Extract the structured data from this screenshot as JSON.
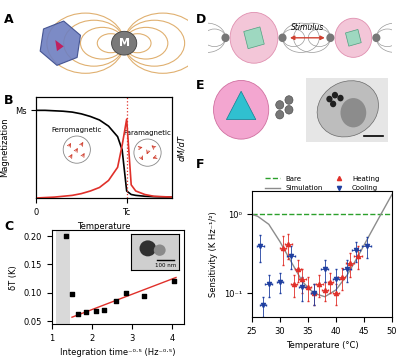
{
  "panel_labels": [
    "A",
    "B",
    "C",
    "D",
    "E",
    "F"
  ],
  "diagram_A": {
    "particle_label": "M"
  },
  "diagram_D": {
    "arrow_label": "Stimulus"
  },
  "chart_data": [
    {
      "type": "line",
      "x_label": "Temperature",
      "y_label": "Magnetization",
      "y2_label": "dM/dT",
      "x": [
        0,
        0.1,
        0.2,
        0.3,
        0.4,
        0.5,
        0.6,
        0.7,
        0.8,
        0.9,
        0.95,
        1.0,
        1.05,
        1.1,
        1.2,
        1.3,
        1.5
      ],
      "series": [
        {
          "color": "#000000",
          "line_style": "solid",
          "axis": "y",
          "values": [
            1.0,
            1.0,
            0.995,
            0.99,
            0.98,
            0.96,
            0.93,
            0.89,
            0.82,
            0.7,
            0.55,
            0.08,
            0.04,
            0.03,
            0.02,
            0.015,
            0.01
          ]
        },
        {
          "color": "#e0302a",
          "line_style": "solid",
          "axis": "y2",
          "values": [
            0,
            0.005,
            0.01,
            0.02,
            0.03,
            0.05,
            0.08,
            0.12,
            0.2,
            0.35,
            0.6,
            0.9,
            0.15,
            0.08,
            0.04,
            0.02,
            0.01
          ]
        }
      ],
      "xlim": [
        0,
        1.5
      ],
      "ylim": [
        0,
        1.15
      ],
      "y2lim": [
        0,
        1.15
      ],
      "xticks": [
        0,
        {
          "value": 1.0,
          "label": "Tc"
        }
      ],
      "yticks": [
        {
          "value": 1.0,
          "label": "Ms"
        }
      ],
      "y2ticks": [],
      "annotations": [
        "Ferromagnetic",
        "Paramagnetic"
      ]
    },
    {
      "type": "scatter",
      "x_label": "Integration time⁻⁰·⁵ (Hz⁻⁰·⁵)",
      "y_label": "δT (K)",
      "series": [
        {
          "type": "scatter",
          "color": "#000000",
          "marker": "square",
          "x": [
            1.35,
            1.5,
            1.65,
            1.85,
            2.1,
            2.3,
            2.6,
            2.85,
            3.3,
            4.05
          ],
          "values": [
            0.2,
            0.098,
            0.062,
            0.066,
            0.068,
            0.07,
            0.085,
            0.1,
            0.095,
            0.12
          ]
        },
        {
          "type": "line",
          "color": "#e0302a",
          "line_style": "solid",
          "x": [
            1.5,
            4.1
          ],
          "values": [
            0.057,
            0.127
          ]
        }
      ],
      "shaded_range": [
        1.1,
        1.45
      ],
      "xlim": [
        1,
        4.3
      ],
      "ylim": [
        0.045,
        0.21
      ],
      "xticks": [
        1,
        2,
        3,
        4
      ],
      "yticks": [
        0.05,
        {
          "value": 0.1,
          "label": "0.10"
        },
        0.15,
        {
          "value": 0.2,
          "label": "0.20"
        }
      ],
      "annotations": [
        "100 nm"
      ]
    },
    {
      "type": "scatter",
      "x_label": "Temperature (°C)",
      "y_label": "Sensitivity (K Hz⁻¹/²)",
      "log": "y",
      "legend": "upper center",
      "series": [
        {
          "name": "Bare",
          "type": "line",
          "color": "#2ca02c",
          "line_style": "dashed",
          "x": [
            25,
            50
          ],
          "values": [
            1,
            1
          ]
        },
        {
          "name": "Simulation",
          "type": "line",
          "color": "#8c8c8c",
          "line_style": "solid",
          "x": [
            25,
            26,
            28,
            30,
            32,
            34,
            36,
            38,
            40,
            42,
            44,
            46,
            48,
            50
          ],
          "values": [
            1.0,
            0.95,
            0.75,
            0.45,
            0.25,
            0.14,
            0.1,
            0.09,
            0.11,
            0.17,
            0.3,
            0.55,
            1.0,
            1.8
          ]
        },
        {
          "name": "Heating",
          "type": "scatter",
          "color": "#e0302a",
          "marker": "triangle_up",
          "x": [
            30.5,
            31.5,
            32.5,
            33.2,
            34,
            35,
            36,
            37,
            38,
            39,
            40,
            41,
            42.5,
            44
          ],
          "values": [
            0.38,
            0.42,
            0.13,
            0.2,
            0.15,
            0.12,
            0.1,
            0.13,
            0.11,
            0.14,
            0.1,
            0.16,
            0.24,
            0.3
          ],
          "x_error": [
            0.5,
            0.6,
            0.5,
            0.5,
            0.6,
            0.5,
            0.5,
            0.6,
            0.5,
            0.5,
            0.5,
            0.6,
            0.7,
            0.7
          ],
          "y_error": [
            0.15,
            0.15,
            0.04,
            0.06,
            0.05,
            0.04,
            0.03,
            0.04,
            0.03,
            0.04,
            0.03,
            0.05,
            0.08,
            0.1
          ]
        },
        {
          "name": "Cooling",
          "type": "scatter",
          "color": "#1f3fa0",
          "marker": "triangle_down",
          "x": [
            26.5,
            27,
            28,
            30,
            32,
            34,
            36,
            38,
            40,
            42,
            43.5,
            45.5
          ],
          "values": [
            0.4,
            0.07,
            0.13,
            0.14,
            0.3,
            0.12,
            0.1,
            0.2,
            0.15,
            0.2,
            0.35,
            0.4
          ],
          "x_error": [
            0.6,
            0.5,
            0.6,
            0.6,
            0.7,
            0.6,
            0.5,
            0.6,
            0.6,
            0.7,
            0.7,
            0.8
          ],
          "y_error": [
            0.15,
            0.02,
            0.04,
            0.04,
            0.1,
            0.04,
            0.03,
            0.06,
            0.05,
            0.06,
            0.1,
            0.12
          ]
        }
      ],
      "xlim": [
        25,
        50
      ],
      "ylim": [
        0.05,
        2
      ],
      "xticks": [
        25,
        30,
        35,
        40,
        45,
        50
      ],
      "yticks": [
        {
          "value": 0.1,
          "label": "10⁻¹"
        },
        {
          "value": 1,
          "label": "10⁰"
        }
      ]
    }
  ]
}
